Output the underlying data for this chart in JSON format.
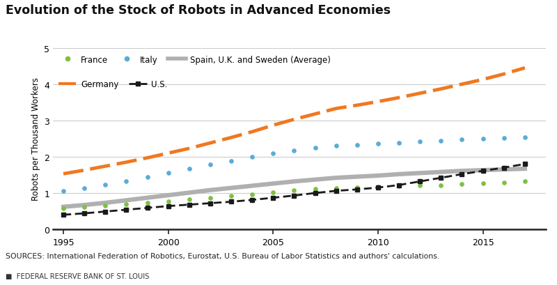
{
  "title": "Evolution of the Stock of Robots in Advanced Economies",
  "ylabel": "Robots per Thousand Workers",
  "years": [
    1995,
    1996,
    1997,
    1998,
    1999,
    2000,
    2001,
    2002,
    2003,
    2004,
    2005,
    2006,
    2007,
    2008,
    2009,
    2010,
    2011,
    2012,
    2013,
    2014,
    2015,
    2016,
    2017
  ],
  "france": [
    0.57,
    0.61,
    0.65,
    0.69,
    0.73,
    0.77,
    0.82,
    0.87,
    0.92,
    0.97,
    1.02,
    1.07,
    1.11,
    1.14,
    1.16,
    1.18,
    1.2,
    1.21,
    1.22,
    1.24,
    1.26,
    1.28,
    1.32
  ],
  "italy": [
    1.06,
    1.14,
    1.23,
    1.33,
    1.44,
    1.56,
    1.67,
    1.78,
    1.89,
    1.99,
    2.09,
    2.18,
    2.25,
    2.3,
    2.33,
    2.36,
    2.39,
    2.42,
    2.44,
    2.47,
    2.49,
    2.51,
    2.54
  ],
  "spain_avg": [
    0.62,
    0.67,
    0.73,
    0.8,
    0.87,
    0.94,
    1.01,
    1.08,
    1.14,
    1.2,
    1.26,
    1.32,
    1.37,
    1.42,
    1.45,
    1.48,
    1.52,
    1.55,
    1.58,
    1.61,
    1.63,
    1.65,
    1.67
  ],
  "germany": [
    1.53,
    1.63,
    1.74,
    1.85,
    1.97,
    2.1,
    2.23,
    2.38,
    2.53,
    2.69,
    2.87,
    3.03,
    3.18,
    3.33,
    3.42,
    3.52,
    3.63,
    3.75,
    3.87,
    4.0,
    4.13,
    4.28,
    4.45
  ],
  "us": [
    0.4,
    0.44,
    0.49,
    0.54,
    0.59,
    0.64,
    0.68,
    0.72,
    0.76,
    0.81,
    0.87,
    0.93,
    1.0,
    1.06,
    1.1,
    1.15,
    1.22,
    1.32,
    1.42,
    1.52,
    1.61,
    1.7,
    1.8
  ],
  "france_color": "#7dc142",
  "italy_color": "#5bacd4",
  "spain_color": "#b0b0b0",
  "germany_color": "#f07820",
  "us_color": "#1a1a1a",
  "ylim": [
    0,
    5
  ],
  "yticks": [
    0,
    1,
    2,
    3,
    4,
    5
  ],
  "xticks": [
    1995,
    2000,
    2005,
    2010,
    2015
  ],
  "xlim": [
    1994.5,
    2018
  ],
  "sources_text": "SOURCES: International Federation of Robotics, Eurostat, U.S. Bureau of Labor Statistics and authors' calculations.",
  "footer_text": "FEDERAL RESERVE BANK OF ST. LOUIS"
}
